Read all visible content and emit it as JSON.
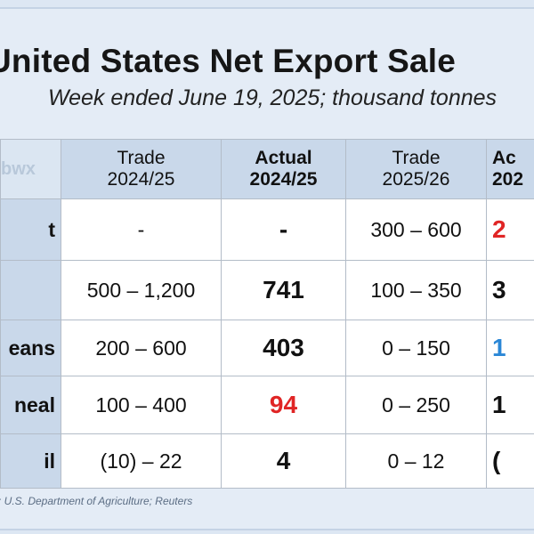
{
  "title": "United States Net Export Sale",
  "subtitle": "Week ended June 19, 2025; thousand tonnes",
  "watermark": "bwx",
  "headers": [
    {
      "line1": "Trade",
      "line2": "2024/25"
    },
    {
      "line1": "Actual",
      "line2": "2024/25"
    },
    {
      "line1": "Trade",
      "line2": "2025/26"
    },
    {
      "line1": "Ac",
      "line2": "202"
    }
  ],
  "rows": [
    {
      "label": "t",
      "trade_2425": "-",
      "actual_2425": "-",
      "trade_2526": "300 – 600",
      "actual_2526": "2",
      "actual_2526_color": "#e02525"
    },
    {
      "label": "",
      "trade_2425": "500 – 1,200",
      "actual_2425": "741",
      "trade_2526": "100 – 350",
      "actual_2526": "3",
      "actual_2526_color": "#111111"
    },
    {
      "label": "eans",
      "trade_2425": "200 – 600",
      "actual_2425": "403",
      "trade_2526": "0 – 150",
      "actual_2526": "1",
      "actual_2526_color": "#2b87d6"
    },
    {
      "label": "neal",
      "trade_2425": "100 – 400",
      "actual_2425": "94",
      "actual_2425_color": "#e02525",
      "trade_2526": "0 – 250",
      "actual_2526": "1",
      "actual_2526_color": "#111111"
    },
    {
      "label": "il",
      "trade_2425": "(10) – 22",
      "actual_2425": "4",
      "trade_2526": "0 – 12",
      "actual_2526": "(",
      "actual_2526_color": "#111111"
    }
  ],
  "source": "s: U.S. Department of Agriculture; Reuters"
}
